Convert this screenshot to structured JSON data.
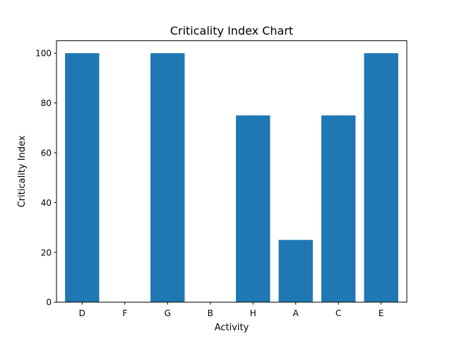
{
  "chart_data": {
    "type": "bar",
    "title": "Criticality Index Chart",
    "xlabel": "Activity",
    "ylabel": "Criticality Index",
    "categories": [
      "D",
      "F",
      "G",
      "B",
      "H",
      "A",
      "C",
      "E"
    ],
    "values": [
      100,
      0,
      100,
      0,
      75,
      25,
      75,
      100
    ],
    "ylim": [
      0,
      105
    ],
    "yticks": [
      0,
      20,
      40,
      60,
      80,
      100
    ],
    "bar_color": "#1f77b4",
    "grid": false,
    "legend": "none"
  }
}
